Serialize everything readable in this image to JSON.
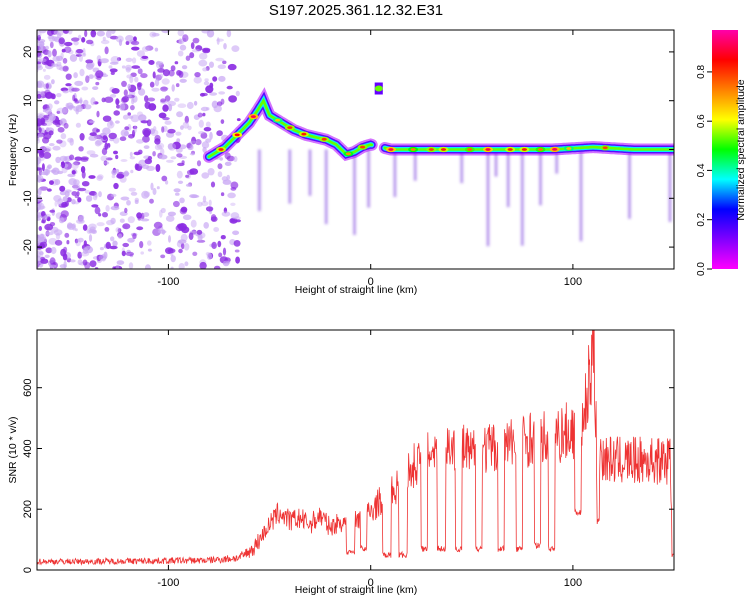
{
  "chart_data": [
    {
      "type": "heatmap",
      "title": "S197.2025.361.12.32.E31",
      "xlabel": "Height of straight line (km)",
      "ylabel": "Frequency (Hz)",
      "xlim": [
        -165,
        150
      ],
      "ylim": [
        -24.5,
        24.5
      ],
      "xticks": [
        -100,
        0,
        100
      ],
      "xtick_labels": [
        "-100",
        "0",
        "100"
      ],
      "yticks": [
        -20,
        -10,
        0,
        10,
        20
      ],
      "ytick_labels": [
        "-20",
        "-10",
        "0",
        "10",
        "20"
      ],
      "colorbar": {
        "label": "Normalized spectral amplitude",
        "range": [
          0,
          0.97
        ],
        "ticks": [
          0.0,
          0.2,
          0.4,
          0.6,
          0.8
        ],
        "tick_labels": [
          "0.0",
          "0.2",
          "0.4",
          "0.6",
          "0.8"
        ],
        "colors": [
          "#ff00ff",
          "#8000ff",
          "#0000ff",
          "#00ffff",
          "#00ff00",
          "#ffff00",
          "#ff8000",
          "#ff0000",
          "#ff00aa"
        ]
      },
      "ridge": {
        "x": [
          -80,
          -72,
          -66,
          -60,
          -56,
          -53,
          -50,
          -44,
          -38,
          -32,
          -27,
          -22,
          -17,
          -12,
          -8,
          -4,
          0,
          10,
          30,
          60,
          90,
          110,
          130,
          150
        ],
        "y": [
          -1.5,
          0.5,
          3,
          5.5,
          8,
          10,
          7,
          5.5,
          4,
          3,
          2.5,
          2,
          1,
          -1,
          -0.5,
          0.5,
          1,
          0,
          0,
          0,
          0,
          0.5,
          0,
          0
        ]
      },
      "side_band": {
        "x": [
          2,
          6
        ],
        "y": 12.5
      }
    },
    {
      "type": "line",
      "xlabel": "Height of straight line (km)",
      "ylabel": "SNR (10 * v/v)",
      "xlim": [
        -165,
        150
      ],
      "ylim": [
        0,
        790
      ],
      "xticks": [
        -100,
        0,
        100
      ],
      "xtick_labels": [
        "-100",
        "0",
        "100"
      ],
      "yticks": [
        0,
        200,
        400,
        600
      ],
      "ytick_labels": [
        "0",
        "200",
        "400",
        "600"
      ],
      "color": "#ee3333",
      "x": [
        -165,
        -140,
        -110,
        -80,
        -65,
        -58,
        -50,
        -45,
        -42,
        -40,
        -35,
        -30,
        -25,
        -20,
        -15,
        -10,
        -5,
        0,
        5,
        10,
        15,
        20,
        25,
        30,
        35,
        40,
        45,
        50,
        55,
        60,
        65,
        70,
        75,
        80,
        85,
        90,
        95,
        100,
        105,
        108,
        110,
        112,
        115,
        120,
        130,
        140,
        148,
        150
      ],
      "y": [
        28,
        28,
        30,
        32,
        40,
        70,
        150,
        190,
        175,
        160,
        170,
        150,
        180,
        140,
        160,
        150,
        170,
        190,
        230,
        250,
        290,
        330,
        380,
        400,
        420,
        410,
        400,
        380,
        395,
        400,
        410,
        415,
        420,
        440,
        430,
        440,
        450,
        460,
        470,
        620,
        760,
        420,
        370,
        360,
        360,
        360,
        360,
        50
      ],
      "dips": [
        {
          "x": [
            -12,
            -8
          ],
          "y": 50
        },
        {
          "x": [
            -5,
            -2
          ],
          "y": 60
        },
        {
          "x": [
            6,
            10
          ],
          "y": 40
        },
        {
          "x": [
            14,
            18
          ],
          "y": 40
        },
        {
          "x": [
            25,
            28
          ],
          "y": 60
        },
        {
          "x": [
            33,
            37
          ],
          "y": 60
        },
        {
          "x": [
            42,
            45
          ],
          "y": 60
        },
        {
          "x": [
            52,
            55
          ],
          "y": 60
        },
        {
          "x": [
            63,
            66
          ],
          "y": 60
        },
        {
          "x": [
            72,
            75
          ],
          "y": 60
        },
        {
          "x": [
            81,
            84
          ],
          "y": 70
        },
        {
          "x": [
            88,
            91
          ],
          "y": 60
        },
        {
          "x": [
            101,
            104
          ],
          "y": 180
        },
        {
          "x": [
            111,
            113
          ],
          "y": 150
        },
        {
          "x": [
            149,
            150
          ],
          "y": 40
        }
      ]
    }
  ]
}
